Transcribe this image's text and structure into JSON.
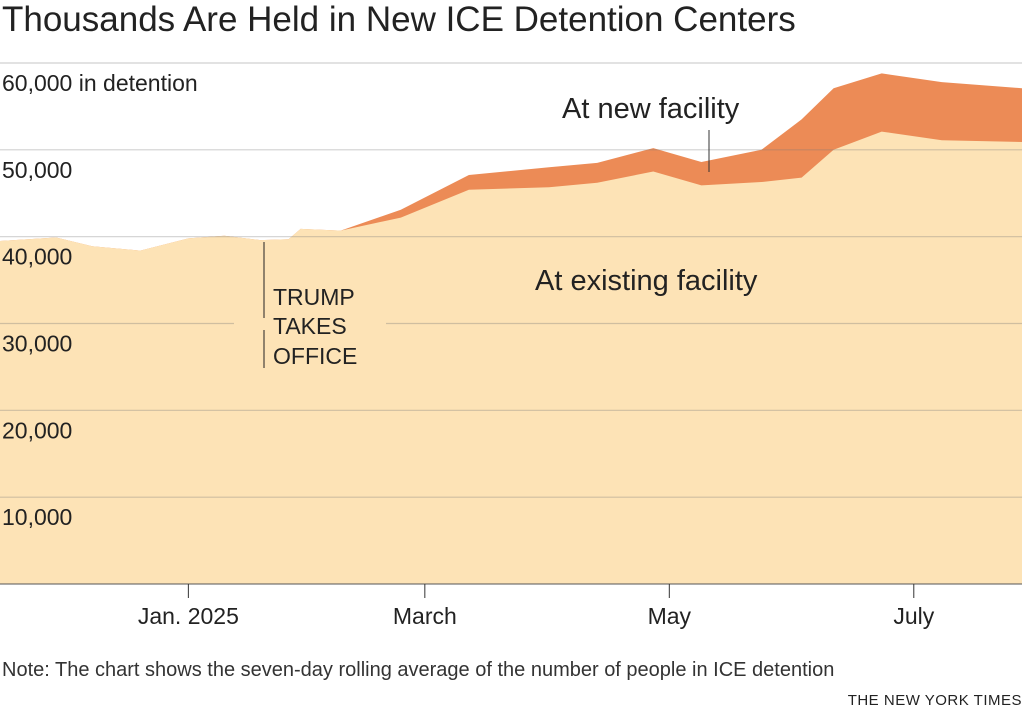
{
  "chart_data": {
    "type": "area",
    "stacked": true,
    "title": "Thousands Are Held in New ICE Detention Centers",
    "ylabel_top": "60,000 in detention",
    "ylim": [
      0,
      60000
    ],
    "yticks": [
      10000,
      20000,
      30000,
      40000,
      50000,
      60000
    ],
    "ytick_labels": [
      "10,000",
      "20,000",
      "30,000",
      "40,000",
      "50,000",
      "60,000 in detention"
    ],
    "xlim": [
      "2024-11-15",
      "2025-07-28"
    ],
    "xticks": [
      "2025-01-01",
      "2025-03-01",
      "2025-05-01",
      "2025-07-01"
    ],
    "xtick_labels": [
      "Jan. 2025",
      "March",
      "May",
      "July"
    ],
    "grid": true,
    "colors": {
      "existing": "#fde3b6",
      "new": "#ec8b56"
    },
    "x": [
      "2024-11-15",
      "2024-11-29",
      "2024-12-08",
      "2024-12-20",
      "2025-01-01",
      "2025-01-10",
      "2025-01-19",
      "2025-01-26",
      "2025-01-29",
      "2025-02-08",
      "2025-02-23",
      "2025-03-12",
      "2025-04-01",
      "2025-04-13",
      "2025-04-27",
      "2025-05-09",
      "2025-05-24",
      "2025-06-03",
      "2025-06-11",
      "2025-06-23",
      "2025-07-08",
      "2025-07-28"
    ],
    "series": [
      {
        "name": "At existing facility",
        "values": [
          39500,
          39900,
          38900,
          38400,
          39800,
          40100,
          39600,
          39700,
          40900,
          40700,
          42200,
          45400,
          45700,
          46200,
          47500,
          45900,
          46300,
          46800,
          50000,
          52100,
          51100,
          50900
        ]
      },
      {
        "name": "At new facility",
        "values": [
          0,
          0,
          0,
          0,
          0,
          0,
          0,
          0,
          0,
          0,
          900,
          1700,
          2300,
          2300,
          2700,
          2700,
          3700,
          6700,
          7100,
          6700,
          6700,
          6200
        ]
      }
    ],
    "annotations": [
      {
        "date": "2025-01-20",
        "text": [
          "TRUMP",
          "TAKES",
          "OFFICE"
        ]
      }
    ],
    "note": "Note: The chart shows the seven-day rolling average of the number of people in ICE detention",
    "source": "THE NEW YORK TIMES"
  }
}
